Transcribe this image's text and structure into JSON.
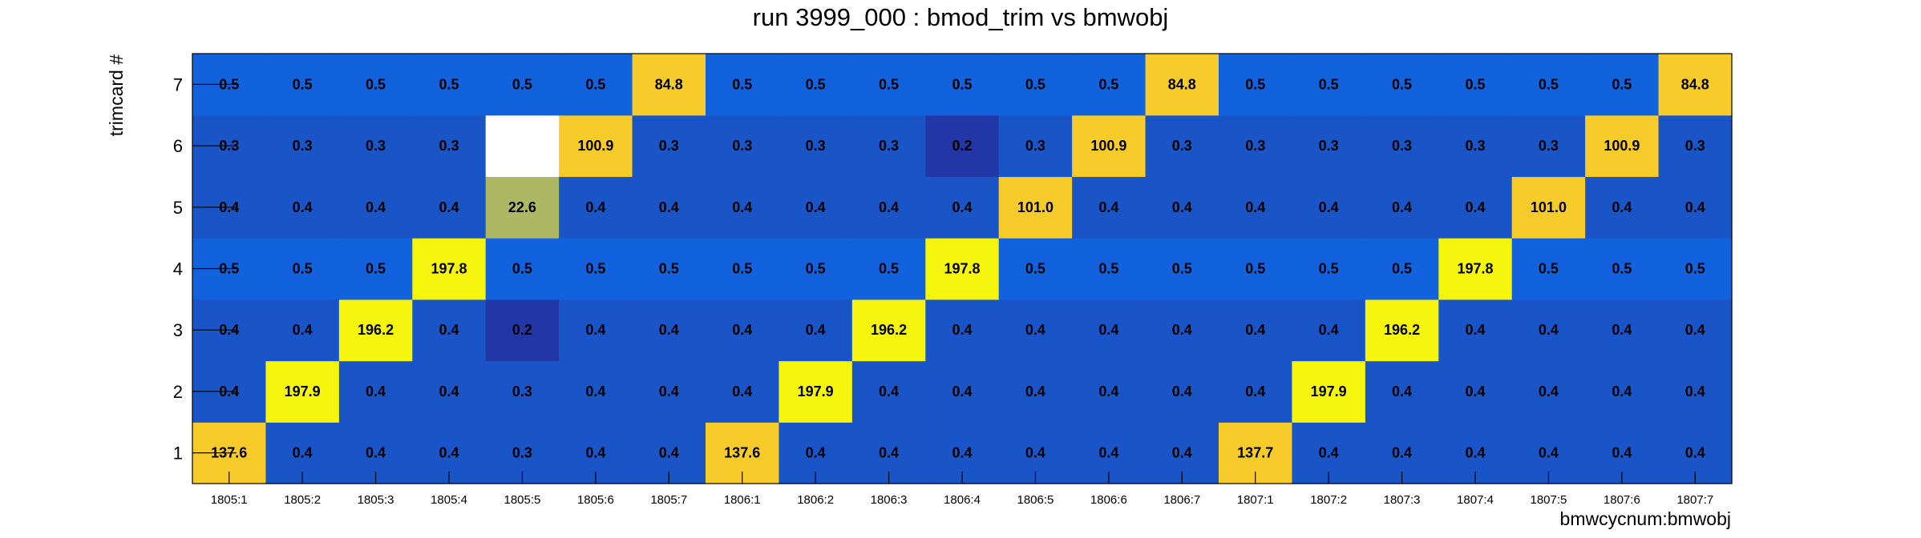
{
  "chart_data": {
    "type": "heatmap",
    "title": "run 3999_000 : bmod_trim vs bmwobj",
    "xlabel": "bmwcycnum:bmwobj",
    "ylabel": "trimcard #",
    "x": [
      "1805:1",
      "1805:2",
      "1805:3",
      "1805:4",
      "1805:5",
      "1805:6",
      "1805:7",
      "1806:1",
      "1806:2",
      "1806:3",
      "1806:4",
      "1806:5",
      "1806:6",
      "1806:7",
      "1807:1",
      "1807:2",
      "1807:3",
      "1807:4",
      "1807:5",
      "1807:6",
      "1807:7"
    ],
    "y": [
      "1",
      "2",
      "3",
      "4",
      "5",
      "6",
      "7"
    ],
    "values": [
      [
        137.6,
        0.4,
        0.4,
        0.4,
        0.3,
        0.4,
        0.4,
        137.6,
        0.4,
        0.4,
        0.4,
        0.4,
        0.4,
        0.4,
        137.7,
        0.4,
        0.4,
        0.4,
        0.4,
        0.4,
        0.4
      ],
      [
        0.4,
        197.9,
        0.4,
        0.4,
        0.3,
        0.4,
        0.4,
        0.4,
        197.9,
        0.4,
        0.4,
        0.4,
        0.4,
        0.4,
        0.4,
        197.9,
        0.4,
        0.4,
        0.4,
        0.4,
        0.4
      ],
      [
        0.4,
        0.4,
        196.2,
        0.4,
        0.2,
        0.4,
        0.4,
        0.4,
        0.4,
        196.2,
        0.4,
        0.4,
        0.4,
        0.4,
        0.4,
        0.4,
        196.2,
        0.4,
        0.4,
        0.4,
        0.4
      ],
      [
        0.5,
        0.5,
        0.5,
        197.8,
        0.5,
        0.5,
        0.5,
        0.5,
        0.5,
        0.5,
        197.8,
        0.5,
        0.5,
        0.5,
        0.5,
        0.5,
        0.5,
        197.8,
        0.5,
        0.5,
        0.5
      ],
      [
        0.4,
        0.4,
        0.4,
        0.4,
        22.6,
        0.4,
        0.4,
        0.4,
        0.4,
        0.4,
        0.4,
        101.0,
        0.4,
        0.4,
        0.4,
        0.4,
        0.4,
        0.4,
        101.0,
        0.4,
        0.4
      ],
      [
        0.3,
        0.3,
        0.3,
        0.3,
        null,
        100.9,
        0.3,
        0.3,
        0.3,
        0.3,
        0.2,
        0.3,
        100.9,
        0.3,
        0.3,
        0.3,
        0.3,
        0.3,
        0.3,
        100.9,
        0.3
      ],
      [
        0.5,
        0.5,
        0.5,
        0.5,
        0.5,
        0.5,
        84.8,
        0.5,
        0.5,
        0.5,
        0.5,
        0.5,
        0.5,
        84.8,
        0.5,
        0.5,
        0.5,
        0.5,
        0.5,
        0.5,
        84.8
      ]
    ],
    "colors": {
      "high": "#f5f50d",
      "mid_high": "#f7cb2a",
      "mid": "#adb865",
      "low_light": "#1162dc",
      "low_med": "#1a55c8",
      "low_dark": "#2237a6",
      "empty": "#ffffff"
    },
    "grid": false,
    "legend": "none"
  }
}
